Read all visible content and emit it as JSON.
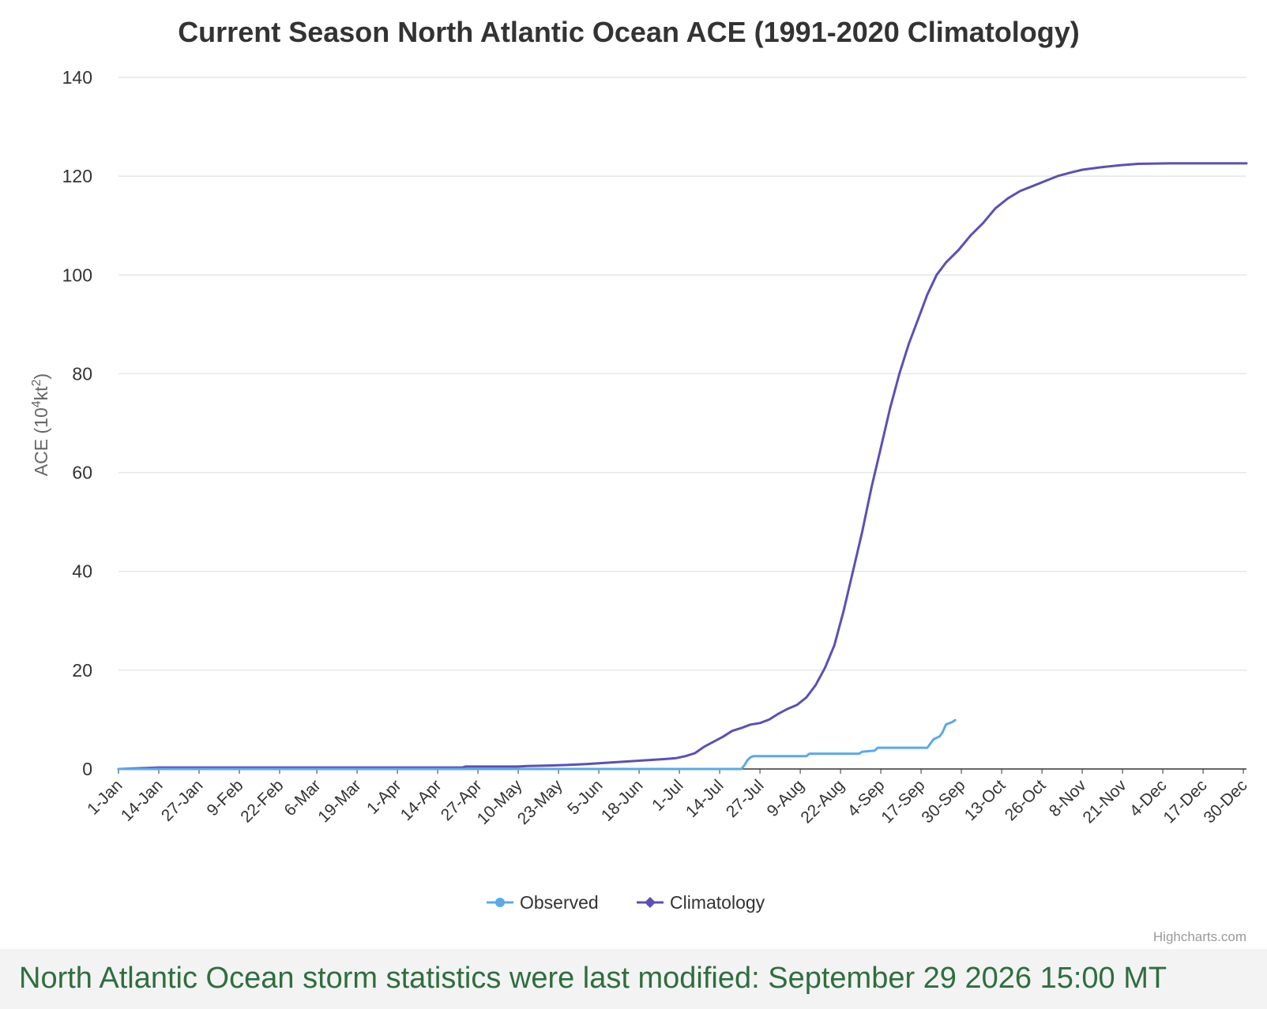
{
  "chart_data": {
    "type": "line",
    "title": "Current Season North Atlantic Ocean ACE (1991-2020 Climatology)",
    "ylabel": "ACE (10^4kt^2)",
    "ylabel_parts": {
      "prefix": "ACE (10",
      "sup1": "4",
      "mid": "kt",
      "sup2": "2",
      "suffix": ")"
    },
    "xlabel": "",
    "ylim": [
      0,
      140
    ],
    "yticks": [
      0,
      20,
      40,
      60,
      80,
      100,
      120,
      140
    ],
    "x_domain_days": [
      1,
      365
    ],
    "xticks": [
      {
        "day": 1,
        "label": "1-Jan"
      },
      {
        "day": 14,
        "label": "14-Jan"
      },
      {
        "day": 27,
        "label": "27-Jan"
      },
      {
        "day": 40,
        "label": "9-Feb"
      },
      {
        "day": 53,
        "label": "22-Feb"
      },
      {
        "day": 65,
        "label": "6-Mar"
      },
      {
        "day": 78,
        "label": "19-Mar"
      },
      {
        "day": 91,
        "label": "1-Apr"
      },
      {
        "day": 104,
        "label": "14-Apr"
      },
      {
        "day": 117,
        "label": "27-Apr"
      },
      {
        "day": 130,
        "label": "10-May"
      },
      {
        "day": 143,
        "label": "23-May"
      },
      {
        "day": 156,
        "label": "5-Jun"
      },
      {
        "day": 169,
        "label": "18-Jun"
      },
      {
        "day": 182,
        "label": "1-Jul"
      },
      {
        "day": 195,
        "label": "14-Jul"
      },
      {
        "day": 208,
        "label": "27-Jul"
      },
      {
        "day": 221,
        "label": "9-Aug"
      },
      {
        "day": 234,
        "label": "22-Aug"
      },
      {
        "day": 247,
        "label": "4-Sep"
      },
      {
        "day": 260,
        "label": "17-Sep"
      },
      {
        "day": 273,
        "label": "30-Sep"
      },
      {
        "day": 286,
        "label": "13-Oct"
      },
      {
        "day": 299,
        "label": "26-Oct"
      },
      {
        "day": 312,
        "label": "8-Nov"
      },
      {
        "day": 325,
        "label": "21-Nov"
      },
      {
        "day": 338,
        "label": "4-Dec"
      },
      {
        "day": 351,
        "label": "17-Dec"
      },
      {
        "day": 364,
        "label": "30-Dec"
      }
    ],
    "grid": true,
    "legend_position": "bottom-center",
    "series": [
      {
        "name": "Observed",
        "color": "#5aa9ea",
        "marker": "circle",
        "points": [
          [
            1,
            0
          ],
          [
            202,
            0
          ],
          [
            203,
            0.8
          ],
          [
            204,
            1.8
          ],
          [
            205,
            2.4
          ],
          [
            206,
            2.6
          ],
          [
            223,
            2.6
          ],
          [
            224,
            3.1
          ],
          [
            240,
            3.1
          ],
          [
            241,
            3.5
          ],
          [
            245,
            3.7
          ],
          [
            246,
            4.3
          ],
          [
            262,
            4.3
          ],
          [
            264,
            6.0
          ],
          [
            266,
            6.6
          ],
          [
            267,
            7.5
          ],
          [
            268,
            9.0
          ],
          [
            270,
            9.5
          ],
          [
            271,
            9.9
          ]
        ]
      },
      {
        "name": "Climatology",
        "color": "#5b50b5",
        "marker": "diamond",
        "points": [
          [
            1,
            0
          ],
          [
            10,
            0.2
          ],
          [
            14,
            0.3
          ],
          [
            30,
            0.3
          ],
          [
            60,
            0.3
          ],
          [
            90,
            0.3
          ],
          [
            112,
            0.3
          ],
          [
            113,
            0.5
          ],
          [
            130,
            0.5
          ],
          [
            133,
            0.6
          ],
          [
            140,
            0.7
          ],
          [
            145,
            0.8
          ],
          [
            152,
            1.0
          ],
          [
            157,
            1.2
          ],
          [
            162,
            1.4
          ],
          [
            167,
            1.6
          ],
          [
            172,
            1.8
          ],
          [
            177,
            2.0
          ],
          [
            181,
            2.2
          ],
          [
            184,
            2.6
          ],
          [
            187,
            3.2
          ],
          [
            190,
            4.5
          ],
          [
            193,
            5.5
          ],
          [
            196,
            6.5
          ],
          [
            199,
            7.7
          ],
          [
            202,
            8.3
          ],
          [
            205,
            9.0
          ],
          [
            208,
            9.3
          ],
          [
            211,
            10.0
          ],
          [
            214,
            11.2
          ],
          [
            217,
            12.2
          ],
          [
            220,
            13.0
          ],
          [
            223,
            14.5
          ],
          [
            226,
            17.0
          ],
          [
            229,
            20.5
          ],
          [
            232,
            25.0
          ],
          [
            235,
            32.0
          ],
          [
            238,
            40.0
          ],
          [
            241,
            48.0
          ],
          [
            244,
            57.0
          ],
          [
            247,
            65.0
          ],
          [
            250,
            73.0
          ],
          [
            253,
            80.0
          ],
          [
            256,
            86.0
          ],
          [
            259,
            91.0
          ],
          [
            262,
            96.0
          ],
          [
            265,
            100.0
          ],
          [
            268,
            102.5
          ],
          [
            272,
            105.0
          ],
          [
            276,
            108.0
          ],
          [
            280,
            110.5
          ],
          [
            284,
            113.5
          ],
          [
            288,
            115.5
          ],
          [
            292,
            117.0
          ],
          [
            296,
            118.0
          ],
          [
            300,
            119.0
          ],
          [
            304,
            120.0
          ],
          [
            308,
            120.7
          ],
          [
            312,
            121.3
          ],
          [
            318,
            121.8
          ],
          [
            324,
            122.2
          ],
          [
            330,
            122.5
          ],
          [
            340,
            122.6
          ],
          [
            365,
            122.6
          ]
        ]
      }
    ],
    "credits": "Highcharts.com"
  },
  "footer": {
    "text": "North Atlantic Ocean storm statistics were last modified: September 29 2026 15:00 MT"
  }
}
